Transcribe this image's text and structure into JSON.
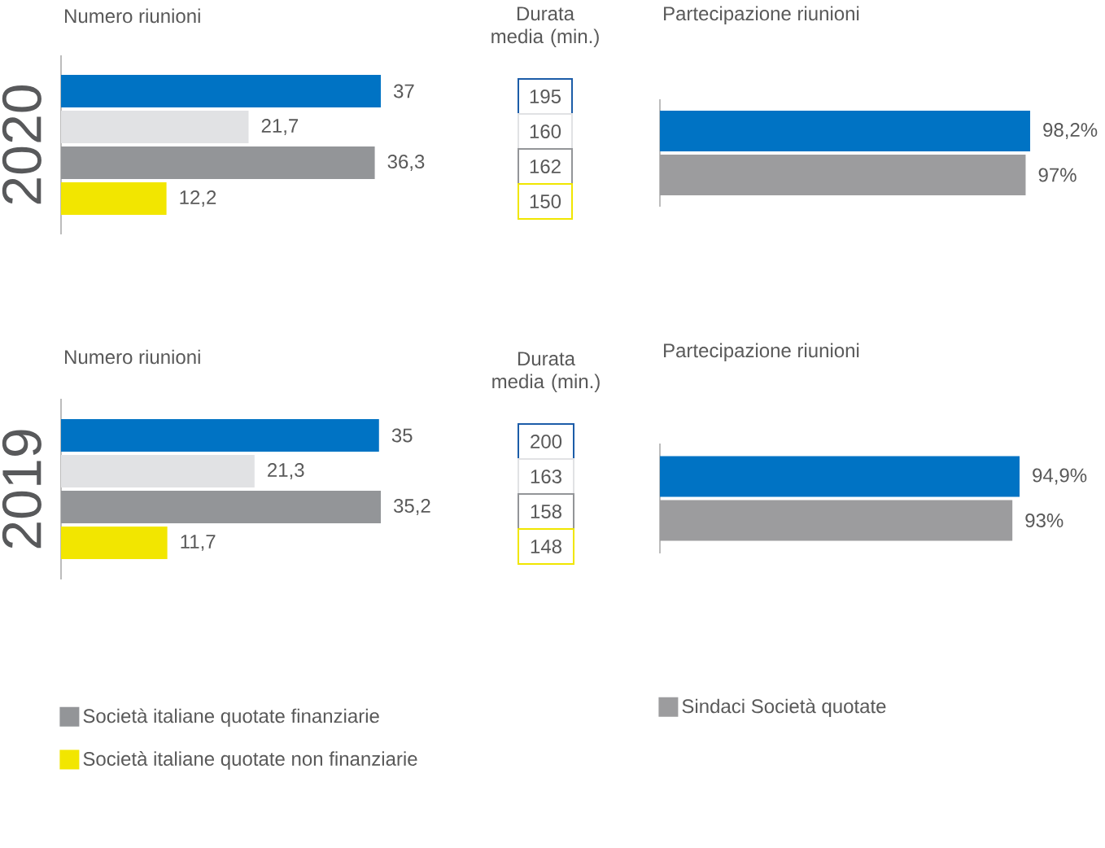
{
  "chart_data": [
    {
      "type": "bar",
      "orientation": "horizontal",
      "title": "Numero riunioni",
      "ylabel": "2020",
      "categories": [
        null
      ],
      "series": [
        {
          "color": "#0073c4",
          "values": [
            37
          ],
          "value_labels": [
            "37"
          ]
        },
        {
          "color": "#e1e2e4",
          "values": [
            21.7
          ],
          "value_labels": [
            "21,7"
          ]
        },
        {
          "color": "#939598",
          "values": [
            36.3
          ],
          "value_labels": [
            "36,3"
          ]
        },
        {
          "color": "#f2e600",
          "values": [
            12.2
          ],
          "value_labels": [
            "12,2"
          ]
        }
      ]
    },
    {
      "type": "other",
      "title": "Durata media (min.)",
      "categories": [
        null,
        null,
        null,
        null
      ],
      "values": [
        195,
        160,
        162,
        150
      ],
      "colors": [
        "#1c5ca8",
        "#e1e2e4",
        "#939598",
        "#f0e600"
      ],
      "data_labels": true
    },
    {
      "type": "bar",
      "orientation": "horizontal",
      "title": "Partecipazione riunioni",
      "categories": [
        null
      ],
      "series": [
        {
          "color": "#0073c4",
          "values": [
            98.2
          ],
          "value_labels": [
            "98,2%"
          ]
        },
        {
          "color": "#9c9c9e",
          "values": [
            97
          ],
          "value_labels": [
            "97%"
          ]
        }
      ]
    },
    {
      "type": "bar",
      "orientation": "horizontal",
      "title": "Numero riunioni",
      "ylabel": "2019",
      "categories": [
        null
      ],
      "legend": "bottom",
      "series": [
        {
          "color": "#0073c4",
          "values": [
            35
          ],
          "value_labels": [
            "35"
          ]
        },
        {
          "color": "#e1e2e4",
          "values": [
            21.3
          ],
          "value_labels": [
            "21,3"
          ]
        },
        {
          "name": "Società italiane quotate finanziarie",
          "color": "#939598",
          "values": [
            35.2
          ],
          "value_labels": [
            "35,2"
          ]
        },
        {
          "name": "Società italiane quotate non finanziarie",
          "color": "#f2e600",
          "values": [
            11.7
          ],
          "value_labels": [
            "11,7"
          ]
        }
      ]
    },
    {
      "type": "other",
      "title": "Durata media (min.)",
      "categories": [
        null,
        null,
        null,
        null
      ],
      "values": [
        200,
        163,
        158,
        148
      ],
      "colors": [
        "#1c5ca8",
        "#e1e2e4",
        "#939598",
        "#f0e600"
      ],
      "data_labels": true
    },
    {
      "type": "bar",
      "orientation": "horizontal",
      "title": "Partecipazione riunioni",
      "categories": [
        null
      ],
      "legend": "bottom",
      "series": [
        {
          "color": "#0073c4",
          "values": [
            94.9
          ],
          "value_labels": [
            "94,9%"
          ]
        },
        {
          "name": "Sindaci Società quotate",
          "color": "#9c9c9e",
          "values": [
            93
          ],
          "value_labels": [
            "93%"
          ]
        }
      ]
    }
  ]
}
